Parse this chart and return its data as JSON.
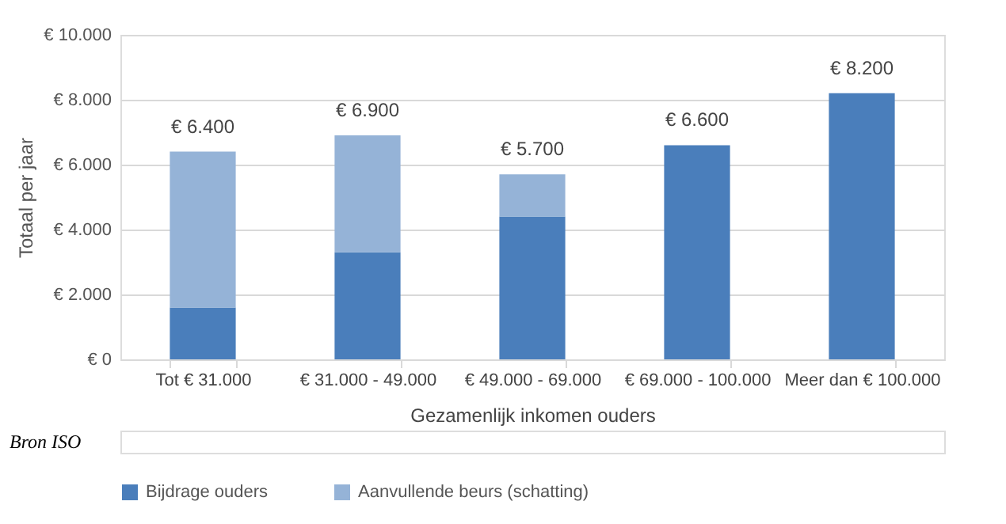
{
  "chart_data": {
    "type": "bar",
    "stacked": true,
    "xlabel": "Gezamenlijk inkomen ouders",
    "ylabel": "Totaal per jaar",
    "categories": [
      "Tot € 31.000",
      "€ 31.000 - 49.000",
      "€ 49.000 - 69.000",
      "€ 69.000 - 100.000",
      "Meer dan € 100.000"
    ],
    "series": [
      {
        "name": "Bijdrage ouders",
        "color": "#4a7ebb",
        "values": [
          1600,
          3300,
          4400,
          6600,
          8200
        ]
      },
      {
        "name": "Aanvullende beurs (schatting)",
        "color": "#95b3d7",
        "values": [
          4800,
          3600,
          1300,
          0,
          0
        ]
      }
    ],
    "totals": [
      "€ 6.400",
      "€ 6.900",
      "€ 5.700",
      "€ 6.600",
      "€ 8.200"
    ],
    "ylim": [
      0,
      10000
    ],
    "yticks": [
      {
        "value": 0,
        "label": "€ 0"
      },
      {
        "value": 2000,
        "label": "€ 2.000"
      },
      {
        "value": 4000,
        "label": "€ 4.000"
      },
      {
        "value": 6000,
        "label": "€ 6.000"
      },
      {
        "value": 8000,
        "label": "€ 8.000"
      },
      {
        "value": 10000,
        "label": "€ 10.000"
      }
    ],
    "grid": "y",
    "legend": "bottom",
    "annotations": [
      "Bron ISO"
    ]
  }
}
